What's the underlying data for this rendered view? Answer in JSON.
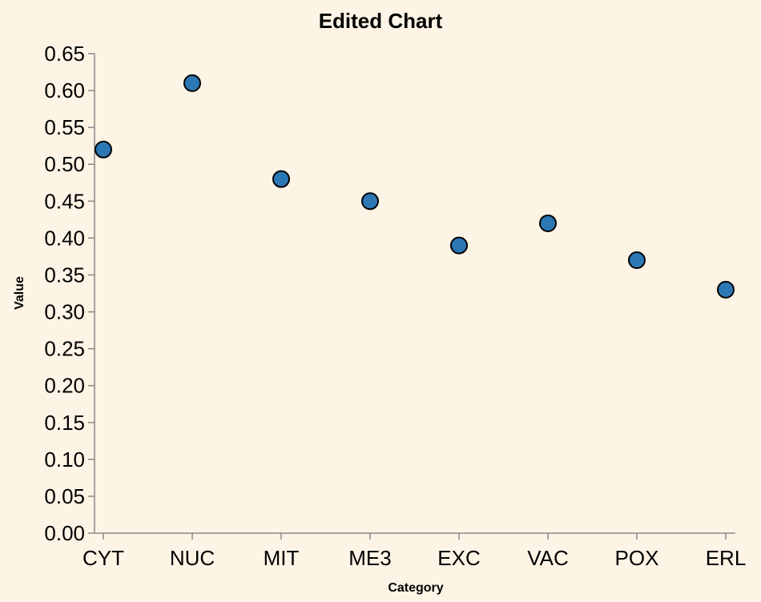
{
  "chart_data": {
    "type": "scatter",
    "title": "Edited Chart",
    "xlabel": "Category",
    "ylabel": "Value",
    "categories": [
      "CYT",
      "NUC",
      "MIT",
      "ME3",
      "EXC",
      "VAC",
      "POX",
      "ERL"
    ],
    "values": [
      0.52,
      0.61,
      0.48,
      0.45,
      0.39,
      0.42,
      0.37,
      0.33
    ],
    "ylim": [
      0,
      0.65
    ],
    "yticks": [
      "0.00",
      "0.05",
      "0.10",
      "0.15",
      "0.20",
      "0.25",
      "0.30",
      "0.35",
      "0.40",
      "0.45",
      "0.50",
      "0.55",
      "0.60",
      "0.65"
    ],
    "grid": false,
    "colors": {
      "background": "#fef4e6",
      "point_fill": "#2c78b5",
      "point_stroke": "#000000",
      "axis": "#888888"
    }
  }
}
